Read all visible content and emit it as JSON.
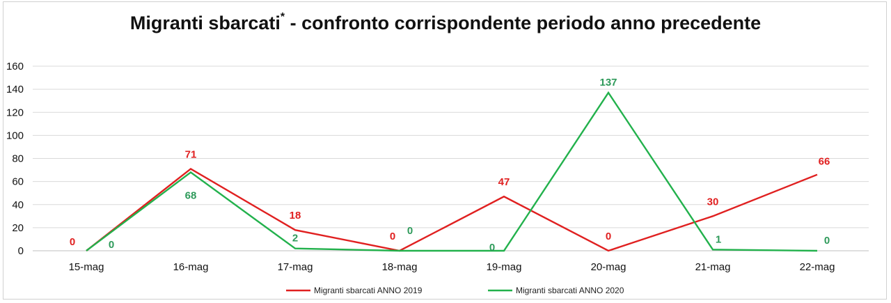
{
  "chart_data": {
    "type": "line",
    "title": "Migranti sbarcati",
    "title_mark": "*",
    "title_suffix": " - confronto corrispondente periodo anno precedente",
    "categories": [
      "15-mag",
      "16-mag",
      "17-mag",
      "18-mag",
      "19-mag",
      "20-mag",
      "21-mag",
      "22-mag"
    ],
    "ylim": [
      0,
      160
    ],
    "yticks": [
      0,
      20,
      40,
      60,
      80,
      100,
      120,
      140,
      160
    ],
    "grid": true,
    "legend_position": "bottom",
    "series": [
      {
        "name": "Migranti sbarcati ANNO 2019",
        "color": "#e02020",
        "label_color": "#e02020",
        "values": [
          0,
          71,
          18,
          0,
          47,
          0,
          30,
          66
        ]
      },
      {
        "name": "Migranti sbarcati ANNO 2020",
        "color": "#22b14c",
        "label_color": "#2e9a5a",
        "values": [
          0,
          68,
          2,
          0,
          0,
          137,
          1,
          0
        ]
      }
    ]
  }
}
